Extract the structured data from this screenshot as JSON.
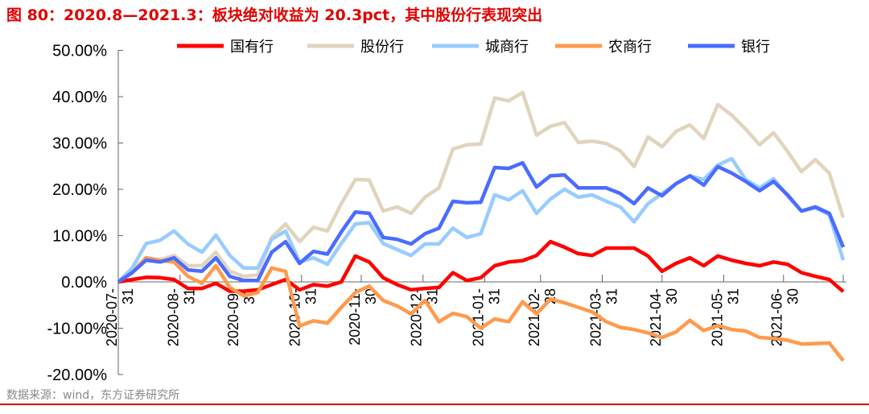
{
  "title": "图 80：2020.8—2021.3：板块绝对收益为 20.3pct，其中股份行表现突出",
  "source": "数据来源：wind，东方证券研究所",
  "chart_data": {
    "type": "line",
    "ylim": [
      -20,
      50
    ],
    "yticks": [
      -20,
      -10,
      0,
      10,
      20,
      30,
      40,
      50
    ],
    "ytick_labels": [
      "-20.00%",
      "-10.00%",
      "0.00%",
      "10.00%",
      "20.00%",
      "30.00%",
      "40.00%",
      "50.00%"
    ],
    "xtick_dates": [
      "2020-07-31",
      "2020-08-31",
      "2020-09-30",
      "2020-10-31",
      "2020-11-30",
      "2020-12-31",
      "2021-01-31",
      "2021-02-28",
      "2021-03-31",
      "2021-04-30",
      "2021-05-31",
      "2021-06-30",
      "2021-07-30"
    ],
    "xtick_labels": [
      [
        "2020-07-",
        "31"
      ],
      [
        "2020-08-",
        "31"
      ],
      [
        "2020-09-",
        "30"
      ],
      [
        "2020-10-",
        "31"
      ],
      [
        "2020-11-",
        "30"
      ],
      [
        "2020-12-",
        "31"
      ],
      [
        "2021-01-",
        "31"
      ],
      [
        "2021-02-",
        "28"
      ],
      [
        "2021-03-",
        "31"
      ],
      [
        "2021-04-",
        "30"
      ],
      [
        "2021-05-",
        "31"
      ],
      [
        "2021-06-",
        "30"
      ],
      null
    ],
    "legend_position": "top",
    "grid": false,
    "x": [
      "2020-07-31",
      "2020-08-07",
      "2020-08-14",
      "2020-08-21",
      "2020-08-28",
      "2020-09-04",
      "2020-09-11",
      "2020-09-18",
      "2020-09-25",
      "2020-10-02",
      "2020-10-09",
      "2020-10-16",
      "2020-10-23",
      "2020-10-30",
      "2020-11-06",
      "2020-11-13",
      "2020-11-20",
      "2020-11-27",
      "2020-12-04",
      "2020-12-11",
      "2020-12-18",
      "2020-12-25",
      "2021-01-01",
      "2021-01-08",
      "2021-01-15",
      "2021-01-22",
      "2021-01-29",
      "2021-02-05",
      "2021-02-12",
      "2021-02-19",
      "2021-02-26",
      "2021-03-05",
      "2021-03-12",
      "2021-03-19",
      "2021-03-26",
      "2021-04-02",
      "2021-04-09",
      "2021-04-16",
      "2021-04-23",
      "2021-04-30",
      "2021-05-07",
      "2021-05-14",
      "2021-05-21",
      "2021-05-28",
      "2021-06-04",
      "2021-06-11",
      "2021-06-18",
      "2021-06-25",
      "2021-07-02",
      "2021-07-09",
      "2021-07-16",
      "2021-07-23",
      "2021-07-30"
    ],
    "series": [
      {
        "name": "国有行",
        "color": "#FF0000",
        "values": [
          0,
          0.5,
          1,
          0.9,
          0.5,
          -1.4,
          -1.4,
          -0.3,
          -2,
          -2,
          -1.7,
          -0.6,
          0.5,
          -1.7,
          -0.6,
          -0.9,
          0,
          5.6,
          4.3,
          0.9,
          -0.6,
          -1.7,
          -1.4,
          -1.2,
          2,
          0.3,
          0.9,
          3.5,
          4.3,
          4.6,
          5.7,
          8.7,
          7.5,
          6.1,
          5.7,
          7.3,
          7.3,
          7.3,
          5.6,
          2.3,
          4,
          5.2,
          3.5,
          5.6,
          4.7,
          4,
          3.5,
          4.3,
          3.8,
          2,
          1.2,
          0.5,
          -2.1
        ]
      },
      {
        "name": "股份行",
        "color": "#E0D4BC",
        "values": [
          0,
          2.5,
          5.2,
          4.8,
          5.7,
          3.5,
          3.5,
          6.4,
          2.3,
          1.2,
          1.5,
          9.6,
          12.5,
          8.7,
          11.8,
          11,
          16.9,
          22.1,
          22,
          15.3,
          16.2,
          14.8,
          18.3,
          20.3,
          28.7,
          29.6,
          29.8,
          39.7,
          39.1,
          40.9,
          31.7,
          33.6,
          34.4,
          30.1,
          30.4,
          29.9,
          28.3,
          24.9,
          31.3,
          29.2,
          32.5,
          33.9,
          31,
          38.3,
          36,
          33,
          29.6,
          32.2,
          28.2,
          23.8,
          26.4,
          23.5,
          13.9
        ]
      },
      {
        "name": "城商行",
        "color": "#99CCFF",
        "values": [
          0,
          3,
          8.3,
          9,
          11,
          8.2,
          6.4,
          10.1,
          5.7,
          3,
          3,
          9.2,
          11,
          4.3,
          5.2,
          3.8,
          8.3,
          12.5,
          12.8,
          8.3,
          7,
          5.7,
          8.2,
          8.2,
          11.6,
          9.6,
          10.4,
          18.8,
          17.7,
          19.7,
          14.8,
          17.9,
          20,
          18.3,
          18.8,
          17.4,
          16.2,
          13,
          16.9,
          19.1,
          21.2,
          22.9,
          22.1,
          25.2,
          26.6,
          22.1,
          20.3,
          22.3,
          18.6,
          15.3,
          16,
          14.5,
          4.7
        ]
      },
      {
        "name": "农商行",
        "color": "#FF9A4D",
        "values": [
          0,
          2,
          5.2,
          4.6,
          4.3,
          1.2,
          -0.3,
          3.5,
          -1.2,
          -3,
          -2.3,
          3,
          2.3,
          -9.5,
          -8.4,
          -8.9,
          -5.5,
          -2.3,
          -0.9,
          -4,
          -5.2,
          -6.9,
          -4,
          -8.6,
          -6.8,
          -7.5,
          -10,
          -8,
          -8.6,
          -4.3,
          -6.9,
          -3.7,
          -4.5,
          -5.5,
          -6.5,
          -8.6,
          -9.8,
          -10.3,
          -11,
          -12,
          -10.8,
          -8.3,
          -10.5,
          -9.4,
          -10.3,
          -10.6,
          -12,
          -12.2,
          -12.6,
          -13.4,
          -13.3,
          -13.2,
          -17
        ]
      },
      {
        "name": "银行",
        "color": "#4A6CFF",
        "values": [
          0,
          2,
          4.7,
          4.3,
          5.2,
          2.6,
          2.3,
          5.2,
          1.2,
          0.3,
          0.3,
          6.4,
          8.7,
          4,
          6.6,
          6,
          10.8,
          15.1,
          14.8,
          9.6,
          9.2,
          8.2,
          10.4,
          11.6,
          17.4,
          17.1,
          17.2,
          24.7,
          24.5,
          25.7,
          20.5,
          22.9,
          23.1,
          20.3,
          20.3,
          20.3,
          19.1,
          16.9,
          20.3,
          18.6,
          21.2,
          22.9,
          20.9,
          24.9,
          23.5,
          21.7,
          19.7,
          21.7,
          18.8,
          15.3,
          16.2,
          14.8,
          7.5
        ]
      }
    ]
  }
}
